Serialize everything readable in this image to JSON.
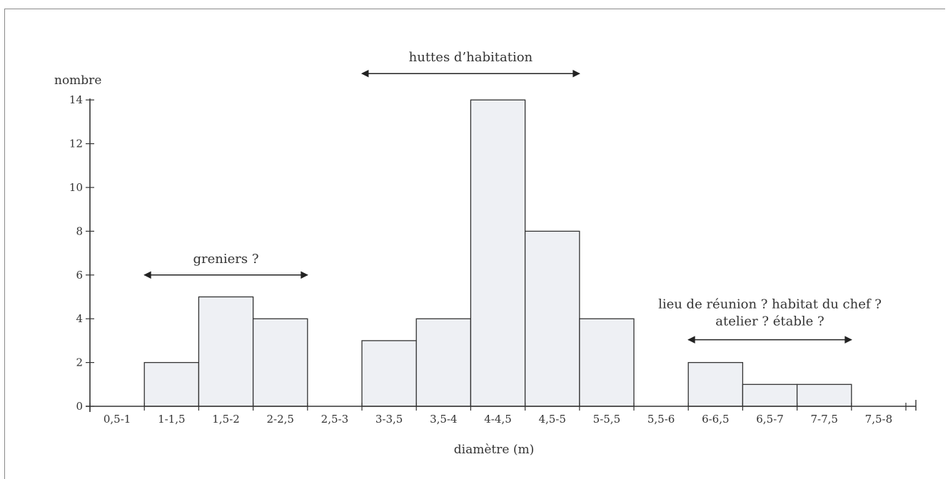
{
  "chart_data": {
    "type": "bar",
    "title": "",
    "xlabel": "diamètre (m)",
    "ylabel": "nombre",
    "ylim": [
      0,
      14
    ],
    "yticks": [
      0,
      2,
      4,
      6,
      8,
      10,
      12,
      14
    ],
    "categories": [
      "0,5-1",
      "1-1,5",
      "1,5-2",
      "2-2,5",
      "2,5-3",
      "3-3,5",
      "3,5-4",
      "4-4,5",
      "4,5-5",
      "5-5,5",
      "5,5-6",
      "6-6,5",
      "6,5-7",
      "7-7,5",
      "7,5-8"
    ],
    "values": [
      0,
      2,
      5,
      4,
      0,
      3,
      4,
      14,
      8,
      4,
      0,
      2,
      1,
      1,
      0
    ],
    "bar_color": "#eef0f4",
    "annotations": [
      {
        "text": "greniers ?",
        "from": "1-1,5",
        "to": "2-2,5"
      },
      {
        "text": "huttes d’habitation",
        "from": "3-3,5",
        "to": "4,5-5"
      },
      {
        "text": "lieu de réunion ? habitat du chef ?",
        "text2": "atelier ? étable ?",
        "from": "6-6,5",
        "to": "7-7,5"
      }
    ]
  }
}
